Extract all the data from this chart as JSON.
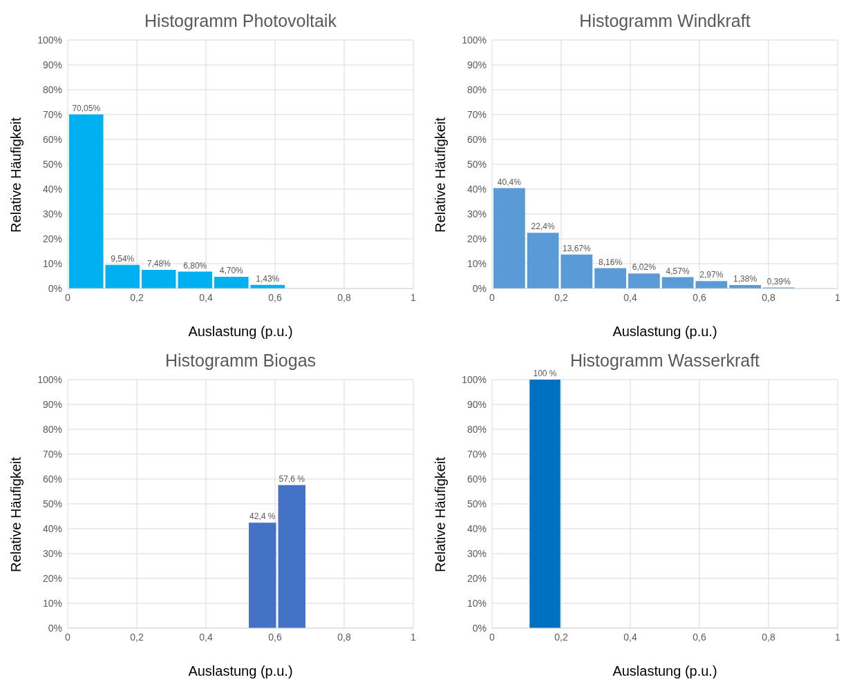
{
  "chart_data": [
    {
      "type": "histogram",
      "title": "Histogramm Photovoltaik",
      "xlabel": "Auslastung (p.u.)",
      "ylabel": "Relative Häufigkeit",
      "bins": [
        0,
        0.105,
        0.21,
        0.315,
        0.42,
        0.525,
        0.63
      ],
      "values": [
        70.05,
        9.54,
        7.48,
        6.8,
        4.7,
        1.43
      ],
      "value_labels": [
        "70,05%",
        "9,54%",
        "7,48%",
        "6,80%",
        "4,70%",
        "1,43%"
      ],
      "color": "#00b0f0",
      "xlim": [
        0,
        1
      ],
      "xticks": [
        {
          "value": 0,
          "label": "0"
        },
        {
          "value": 0.2,
          "label": "0,2"
        },
        {
          "value": 0.4,
          "label": "0,4"
        },
        {
          "value": 0.6,
          "label": "0,6"
        },
        {
          "value": 0.8,
          "label": "0,8"
        },
        {
          "value": 1,
          "label": "1"
        }
      ],
      "ylim": [
        0,
        100
      ],
      "yticks": [
        {
          "value": 0,
          "label": "0%"
        },
        {
          "value": 10,
          "label": "10%"
        },
        {
          "value": 20,
          "label": "20%"
        },
        {
          "value": 30,
          "label": "30%"
        },
        {
          "value": 40,
          "label": "40%"
        },
        {
          "value": 50,
          "label": "50%"
        },
        {
          "value": 60,
          "label": "60%"
        },
        {
          "value": 70,
          "label": "70%"
        },
        {
          "value": 80,
          "label": "80%"
        },
        {
          "value": 90,
          "label": "90%"
        },
        {
          "value": 100,
          "label": "100%"
        }
      ],
      "grid": true,
      "legend": false
    },
    {
      "type": "histogram",
      "title": "Histogramm Windkraft",
      "xlabel": "Auslastung (p.u.)",
      "ylabel": "Relative Häufigkeit",
      "bins": [
        0,
        0.0975,
        0.195,
        0.2925,
        0.39,
        0.4875,
        0.585,
        0.6825,
        0.78,
        0.8775
      ],
      "values": [
        40.4,
        22.4,
        13.67,
        8.16,
        6.02,
        4.57,
        2.97,
        1.38,
        0.39
      ],
      "value_labels": [
        "40,4%",
        "22,4%",
        "13,67%",
        "8,16%",
        "6,02%",
        "4,57%",
        "2,97%",
        "1,38%",
        "0,39%"
      ],
      "color": "#5b9bd5",
      "xlim": [
        0,
        1
      ],
      "xticks": [
        {
          "value": 0,
          "label": "0"
        },
        {
          "value": 0.2,
          "label": "0,2"
        },
        {
          "value": 0.4,
          "label": "0,4"
        },
        {
          "value": 0.6,
          "label": "0,6"
        },
        {
          "value": 0.8,
          "label": "0,8"
        },
        {
          "value": 1,
          "label": "1"
        }
      ],
      "ylim": [
        0,
        100
      ],
      "yticks": [
        {
          "value": 0,
          "label": "0%"
        },
        {
          "value": 10,
          "label": "10%"
        },
        {
          "value": 20,
          "label": "20%"
        },
        {
          "value": 30,
          "label": "30%"
        },
        {
          "value": 40,
          "label": "40%"
        },
        {
          "value": 50,
          "label": "50%"
        },
        {
          "value": 60,
          "label": "60%"
        },
        {
          "value": 70,
          "label": "70%"
        },
        {
          "value": 80,
          "label": "80%"
        },
        {
          "value": 90,
          "label": "90%"
        },
        {
          "value": 100,
          "label": "100%"
        }
      ],
      "grid": true,
      "legend": false
    },
    {
      "type": "histogram",
      "title": "Histogramm Biogas",
      "xlabel": "Auslastung (p.u.)",
      "ylabel": "Relative Häufigkeit",
      "bins": [
        0.52,
        0.605,
        0.69
      ],
      "values": [
        42.4,
        57.6
      ],
      "value_labels": [
        "42,4 %",
        "57,6 %"
      ],
      "color": "#4472c4",
      "xlim": [
        0,
        1
      ],
      "xticks": [
        {
          "value": 0,
          "label": "0"
        },
        {
          "value": 0.2,
          "label": "0,2"
        },
        {
          "value": 0.4,
          "label": "0,4"
        },
        {
          "value": 0.6,
          "label": "0,6"
        },
        {
          "value": 0.8,
          "label": "0,8"
        },
        {
          "value": 1,
          "label": "1"
        }
      ],
      "ylim": [
        0,
        100
      ],
      "yticks": [
        {
          "value": 0,
          "label": "0%"
        },
        {
          "value": 10,
          "label": "10%"
        },
        {
          "value": 20,
          "label": "20%"
        },
        {
          "value": 30,
          "label": "30%"
        },
        {
          "value": 40,
          "label": "40%"
        },
        {
          "value": 50,
          "label": "50%"
        },
        {
          "value": 60,
          "label": "60%"
        },
        {
          "value": 70,
          "label": "70%"
        },
        {
          "value": 80,
          "label": "80%"
        },
        {
          "value": 90,
          "label": "90%"
        },
        {
          "value": 100,
          "label": "100%"
        }
      ],
      "grid": true,
      "legend": false
    },
    {
      "type": "histogram",
      "title": "Histogramm Wasserkraft",
      "xlabel": "Auslastung (p.u.)",
      "ylabel": "Relative Häufigkeit",
      "bins": [
        0.105,
        0.2
      ],
      "values": [
        100
      ],
      "value_labels": [
        "100 %"
      ],
      "color": "#0070c0",
      "xlim": [
        0,
        1
      ],
      "xticks": [
        {
          "value": 0,
          "label": "0"
        },
        {
          "value": 0.2,
          "label": "0,2"
        },
        {
          "value": 0.4,
          "label": "0,4"
        },
        {
          "value": 0.6,
          "label": "0,6"
        },
        {
          "value": 0.8,
          "label": "0,8"
        },
        {
          "value": 1,
          "label": "1"
        }
      ],
      "ylim": [
        0,
        100
      ],
      "yticks": [
        {
          "value": 0,
          "label": "0%"
        },
        {
          "value": 10,
          "label": "10%"
        },
        {
          "value": 20,
          "label": "20%"
        },
        {
          "value": 30,
          "label": "30%"
        },
        {
          "value": 40,
          "label": "40%"
        },
        {
          "value": 50,
          "label": "50%"
        },
        {
          "value": 60,
          "label": "60%"
        },
        {
          "value": 70,
          "label": "70%"
        },
        {
          "value": 80,
          "label": "80%"
        },
        {
          "value": 90,
          "label": "90%"
        },
        {
          "value": 100,
          "label": "100%"
        }
      ],
      "grid": true,
      "legend": false
    }
  ]
}
